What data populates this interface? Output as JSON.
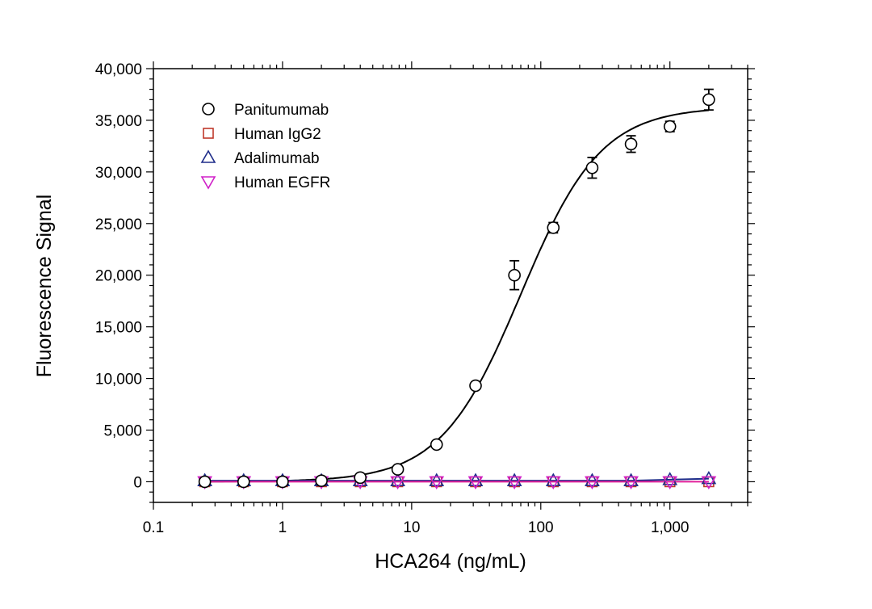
{
  "chart_data": {
    "type": "scatter",
    "xlabel": "HCA264 (ng/mL)",
    "ylabel": "Fluorescence Signal",
    "xscale": "log",
    "xlim": [
      0.1,
      4000
    ],
    "ylim": [
      -2000,
      40000
    ],
    "xticks": [
      0.1,
      1,
      10,
      100,
      1000
    ],
    "xtick_labels": [
      "0.1",
      "1",
      "10",
      "100",
      "1,000"
    ],
    "yticks": [
      0,
      5000,
      10000,
      15000,
      20000,
      25000,
      30000,
      35000,
      40000
    ],
    "ytick_labels": [
      "0",
      "5,000",
      "10,000",
      "15,000",
      "20,000",
      "25,000",
      "30,000",
      "35,000",
      "40,000"
    ],
    "legend_position": "top-left",
    "grid": false,
    "x": [
      0.25,
      0.5,
      1,
      2,
      4,
      7.8,
      15.6,
      31.25,
      62.5,
      125,
      250,
      500,
      1000,
      2000
    ],
    "series": [
      {
        "name": "Panitumumab",
        "marker": "circle",
        "color": "#000000",
        "values": [
          0,
          0,
          0,
          100,
          400,
          1200,
          3600,
          9300,
          20000,
          24600,
          30400,
          32700,
          34400,
          37000
        ],
        "error": [
          0,
          0,
          0,
          0,
          0,
          300,
          300,
          300,
          1400,
          500,
          1000,
          800,
          500,
          1000
        ],
        "fit": {
          "type": "4PL",
          "bottom": 0,
          "top": 36300,
          "ec50": 70,
          "hill": 1.4,
          "color": "#000000"
        }
      },
      {
        "name": "Human IgG2",
        "marker": "square",
        "color": "#c0392b",
        "values": [
          0,
          0,
          0,
          0,
          0,
          0,
          0,
          0,
          0,
          0,
          0,
          0,
          0,
          0
        ]
      },
      {
        "name": "Adalimumab",
        "marker": "triangle-up",
        "color": "#1f2d8a",
        "values": [
          100,
          100,
          100,
          100,
          100,
          100,
          100,
          100,
          100,
          100,
          100,
          100,
          200,
          300
        ],
        "fit_color": "#1f2d8a"
      },
      {
        "name": "Human EGFR",
        "marker": "triangle-down",
        "color": "#d020c8",
        "values": [
          0,
          0,
          0,
          0,
          0,
          0,
          0,
          0,
          0,
          0,
          0,
          0,
          0,
          0
        ],
        "fit_color": "#e0209a"
      }
    ]
  }
}
